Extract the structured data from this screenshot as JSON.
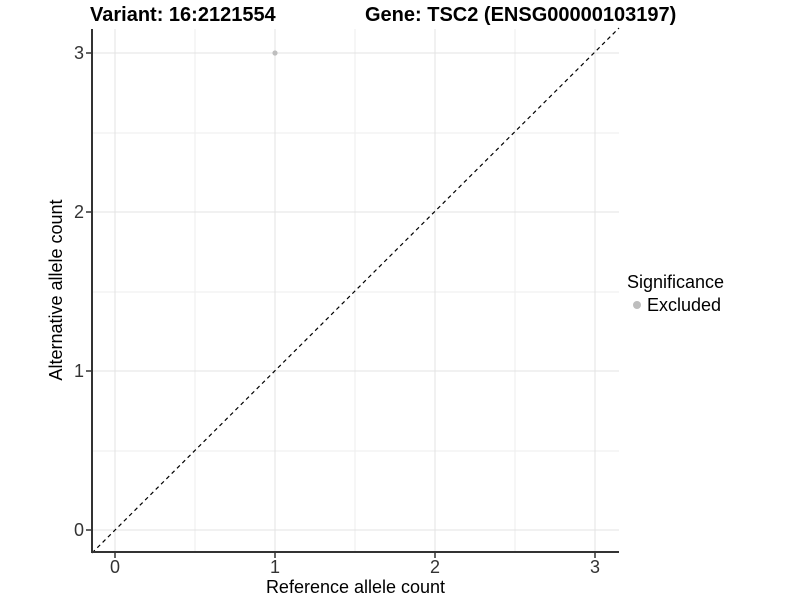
{
  "chart_data": {
    "type": "scatter",
    "title_left": "Variant: 16:2121554",
    "title_right": "Gene: TSC2 (ENSG00000103197)",
    "xlabel": "Reference allele count",
    "ylabel": "Alternative allele count",
    "x_ticks": [
      "0",
      "1",
      "2",
      "3"
    ],
    "y_ticks": [
      "0",
      "1",
      "2",
      "3"
    ],
    "xlim": [
      -0.15,
      3.15
    ],
    "ylim": [
      -0.15,
      3.15
    ],
    "grid": "major and minor light-gray gridlines on white panel, axis lines left and bottom only",
    "points": [
      {
        "x": 1,
        "y": 3,
        "series": "Excluded",
        "color": "#bebebe"
      }
    ],
    "reference_line": {
      "type": "identity y=x",
      "style": "dashed",
      "color": "#000000"
    },
    "legend": {
      "title": "Significance",
      "position": "right",
      "items": [
        {
          "label": "Excluded",
          "marker": "circle",
          "color": "#bebebe"
        }
      ]
    },
    "colors": {
      "background": "#ffffff",
      "grid_major": "#e3e3e3",
      "grid_minor": "#ededed",
      "axis_line": "#333333",
      "tick_text": "#333333",
      "point": "#bebebe"
    }
  }
}
